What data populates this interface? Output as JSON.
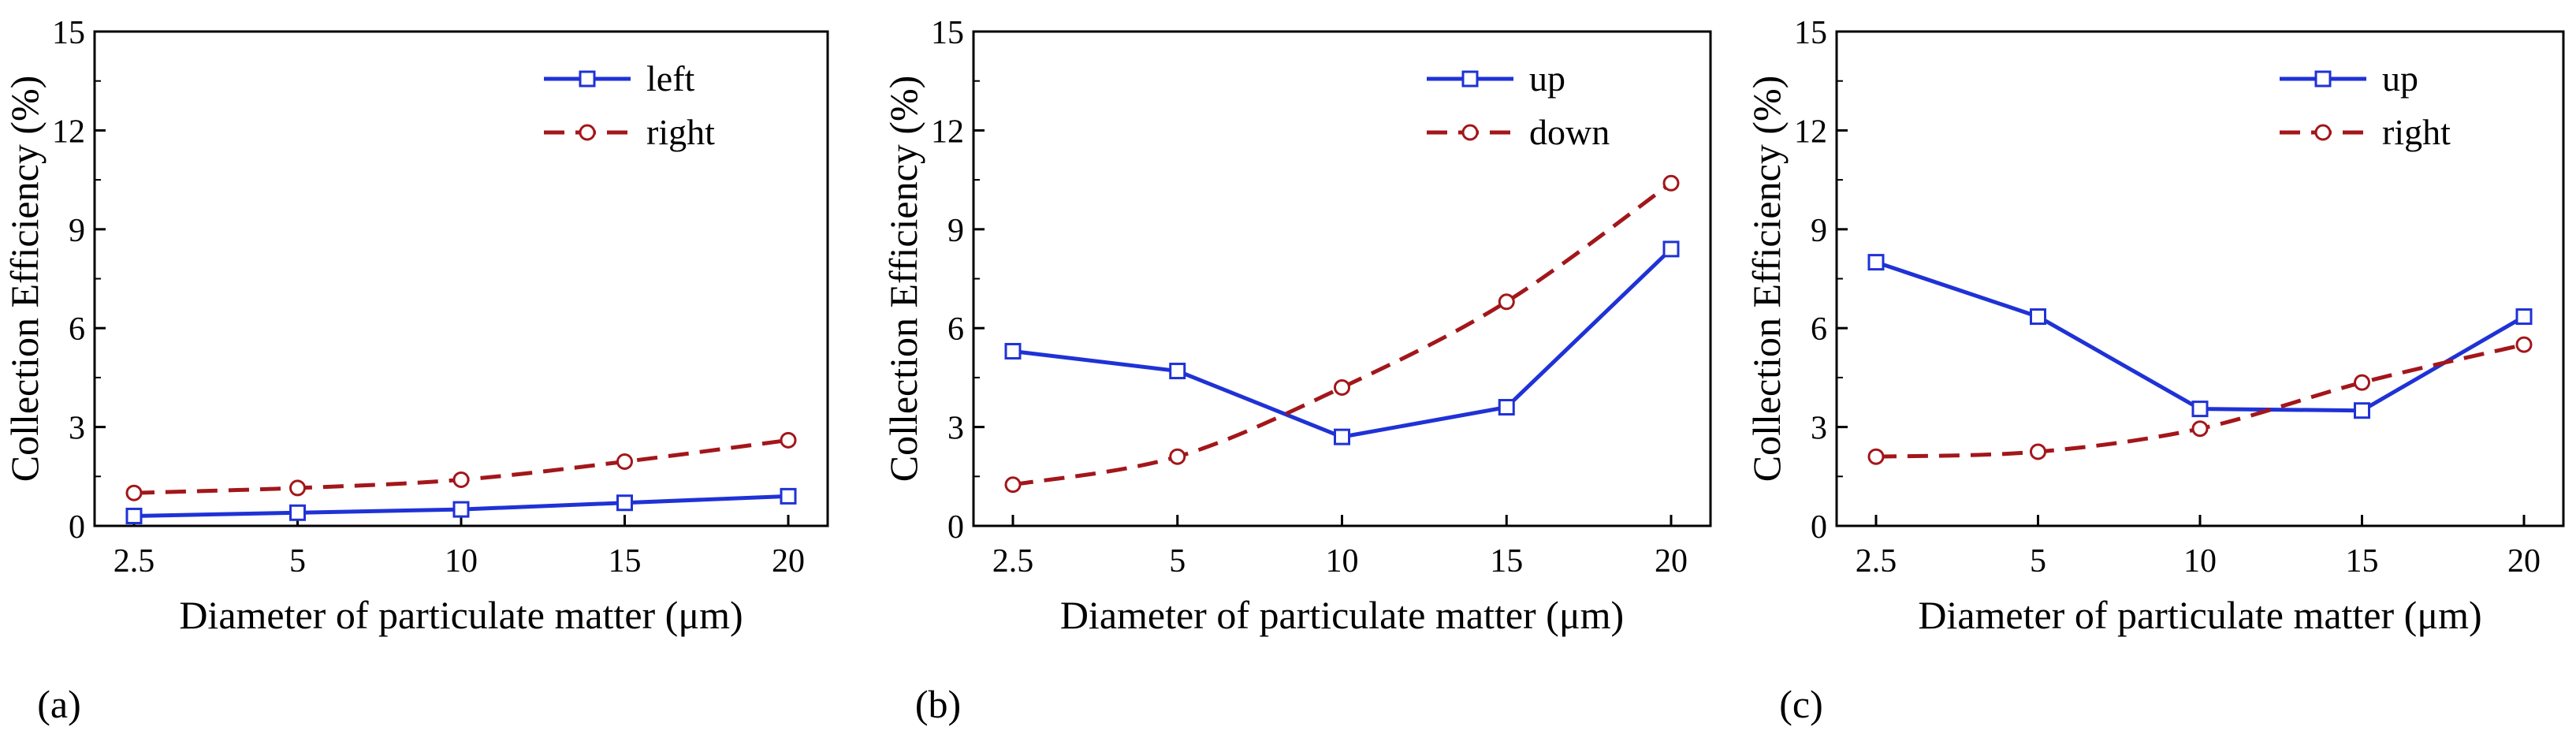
{
  "figure": {
    "colors": {
      "series1": "#1f32d6",
      "series2": "#a3161a",
      "axis": "#000000"
    }
  },
  "chart_data": [
    {
      "type": "line",
      "panel_label": "(a)",
      "categories": [
        "2.5",
        "5",
        "10",
        "15",
        "20"
      ],
      "xlabel": "Diameter of particulate matter (μm)",
      "ylabel": "Collection Efficiency (%)",
      "ylim": [
        0,
        15
      ],
      "yticks": [
        "0",
        "3",
        "6",
        "9",
        "12",
        "15"
      ],
      "legend_position": "top-right",
      "series": [
        {
          "name": "left",
          "values": [
            0.3,
            0.4,
            0.5,
            0.7,
            0.9
          ],
          "marker": "square",
          "line": "solid"
        },
        {
          "name": "right",
          "values": [
            1.0,
            1.15,
            1.4,
            1.95,
            2.6
          ],
          "marker": "circle",
          "line": "dashed"
        }
      ]
    },
    {
      "type": "line",
      "panel_label": "(b)",
      "categories": [
        "2.5",
        "5",
        "10",
        "15",
        "20"
      ],
      "xlabel": "Diameter of particulate matter (μm)",
      "ylabel": "Collection Efficiency (%)",
      "ylim": [
        0,
        15
      ],
      "yticks": [
        "0",
        "3",
        "6",
        "9",
        "12",
        "15"
      ],
      "legend_position": "top-right",
      "series": [
        {
          "name": "up",
          "values": [
            5.3,
            4.7,
            2.7,
            3.6,
            8.4
          ],
          "marker": "square",
          "line": "solid"
        },
        {
          "name": "down",
          "values": [
            1.25,
            2.1,
            4.2,
            6.8,
            10.4
          ],
          "marker": "circle",
          "line": "dashed"
        }
      ]
    },
    {
      "type": "line",
      "panel_label": "(c)",
      "categories": [
        "2.5",
        "5",
        "10",
        "15",
        "20"
      ],
      "xlabel": "Diameter of particulate matter (μm)",
      "ylabel": "Collection Efficiency (%)",
      "ylim": [
        0,
        15
      ],
      "yticks": [
        "0",
        "3",
        "6",
        "9",
        "12",
        "15"
      ],
      "legend_position": "top-right",
      "series": [
        {
          "name": "up",
          "values": [
            8.0,
            6.35,
            3.55,
            3.5,
            6.35
          ],
          "marker": "square",
          "line": "solid"
        },
        {
          "name": "right",
          "values": [
            2.1,
            2.25,
            2.95,
            4.35,
            5.5
          ],
          "marker": "circle",
          "line": "dashed"
        }
      ]
    }
  ]
}
